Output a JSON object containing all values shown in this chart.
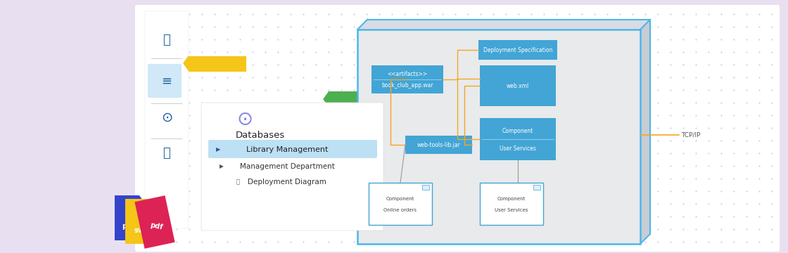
{
  "bg_color": "#e8e0f0",
  "panel_bg": "#ffffff",
  "diagram_bg": "#e8eaec",
  "diagram_border": "#4db6e8",
  "blue_box_color": "#42a5d5",
  "white_box_border": "#42a5d5",
  "orange_line_color": "#f5a623",
  "tcp_label": "TCP/IP",
  "title_text": "Databases",
  "menu_item1": "Library Management",
  "menu_item2": "Management Department",
  "menu_item3": "Deployment Diagram",
  "box1_line1": "<<artifacts>>",
  "box1_line2": "book_club_app.war",
  "box2_text": "Deployment Specification",
  "box3_text": "web.xml",
  "box4_line1": "Component",
  "box4_line2": "User Services",
  "box5_text": "web-tools-lib.jar",
  "box6_line1": "Component",
  "box6_line2": "Online orders",
  "box7_line1": "Component",
  "box7_line2": "User Services",
  "yellow_rect_color": "#f5c518",
  "green_rect_color": "#4caf50"
}
